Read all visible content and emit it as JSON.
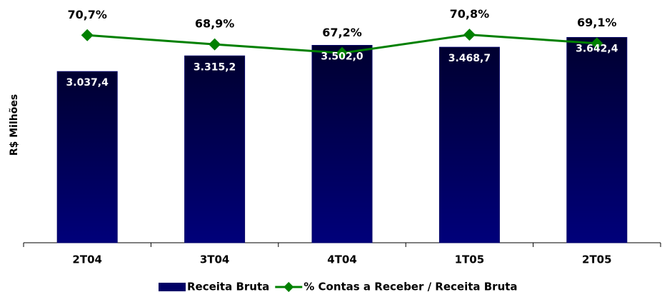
{
  "chart_data": {
    "type": "bar-line",
    "y_label": "R$ Milhões",
    "categories": [
      "2T04",
      "3T04",
      "4T04",
      "1T05",
      "2T05"
    ],
    "series": [
      {
        "name": "Receita Bruta",
        "type": "bar",
        "color": "#000066",
        "values": [
          3037.4,
          3315.2,
          3502.0,
          3468.7,
          3642.4
        ],
        "value_labels": [
          "3.037,4",
          "3.315,2",
          "3.502,0",
          "3.468,7",
          "3.642,4"
        ]
      },
      {
        "name": "% Contas a Receber / Receita Bruta",
        "type": "line",
        "axis": "y2",
        "color": "#008000",
        "values": [
          70.7,
          68.9,
          67.2,
          70.8,
          69.1
        ],
        "value_labels": [
          "70,7%",
          "68,9%",
          "67,2%",
          "70,8%",
          "69,1%"
        ]
      }
    ],
    "ylim": [
      0,
      3800
    ],
    "y2lim": [
      30,
      72
    ]
  }
}
